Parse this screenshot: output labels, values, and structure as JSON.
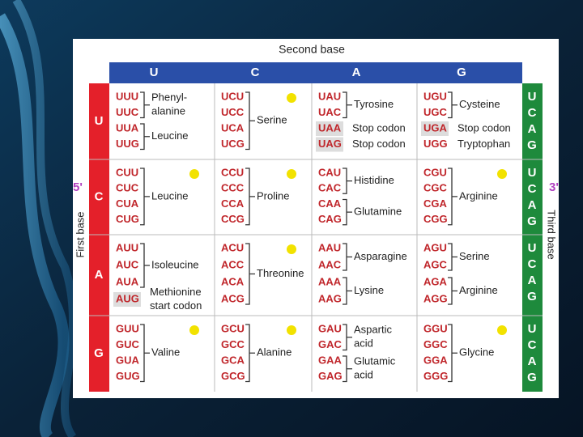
{
  "table": {
    "title": "Second base",
    "columns": [
      "U",
      "C",
      "A",
      "G"
    ],
    "first_base_label": "First base",
    "third_base_label": "Third base",
    "five_prime": "5'",
    "three_prime": "3'",
    "third_base": [
      "U",
      "C",
      "A",
      "G"
    ],
    "rows": [
      {
        "base": "U",
        "cells": [
          [
            {
              "codons": [
                "UUU",
                "UUC"
              ],
              "label": [
                "Phenyl-",
                "alanine"
              ]
            },
            {
              "codons": [
                "UUA",
                "UUG"
              ],
              "label": [
                "Leucine"
              ]
            }
          ],
          [
            {
              "codons": [
                "UCU",
                "UCC",
                "UCA",
                "UCG"
              ],
              "label": [
                "Serine"
              ]
            }
          ],
          [
            {
              "codons": [
                "UAU",
                "UAC"
              ],
              "label": [
                "Tyrosine"
              ]
            },
            {
              "codons": [
                "UAA"
              ],
              "label": [
                "Stop codon"
              ],
              "highlight": true
            },
            {
              "codons": [
                "UAG"
              ],
              "label": [
                "Stop codon"
              ],
              "highlight": true
            }
          ],
          [
            {
              "codons": [
                "UGU",
                "UGC"
              ],
              "label": [
                "Cysteine"
              ]
            },
            {
              "codons": [
                "UGA"
              ],
              "label": [
                "Stop codon"
              ],
              "highlight": true
            },
            {
              "codons": [
                "UGG"
              ],
              "label": [
                "Tryptophan"
              ]
            }
          ]
        ]
      },
      {
        "base": "C",
        "cells": [
          [
            {
              "codons": [
                "CUU",
                "CUC",
                "CUA",
                "CUG"
              ],
              "label": [
                "Leucine"
              ]
            }
          ],
          [
            {
              "codons": [
                "CCU",
                "CCC",
                "CCA",
                "CCG"
              ],
              "label": [
                "Proline"
              ]
            }
          ],
          [
            {
              "codons": [
                "CAU",
                "CAC"
              ],
              "label": [
                "Histidine"
              ]
            },
            {
              "codons": [
                "CAA",
                "CAG"
              ],
              "label": [
                "Glutamine"
              ]
            }
          ],
          [
            {
              "codons": [
                "CGU",
                "CGC",
                "CGA",
                "CGG"
              ],
              "label": [
                "Arginine"
              ]
            }
          ]
        ]
      },
      {
        "base": "A",
        "cells": [
          [
            {
              "codons": [
                "AUU",
                "AUC",
                "AUA"
              ],
              "label": [
                "Isoleucine"
              ]
            },
            {
              "codons": [
                "AUG"
              ],
              "label": [
                "Methionine",
                "start codon"
              ],
              "highlight": true
            }
          ],
          [
            {
              "codons": [
                "ACU",
                "ACC",
                "ACA",
                "ACG"
              ],
              "label": [
                "Threonine"
              ]
            }
          ],
          [
            {
              "codons": [
                "AAU",
                "AAC"
              ],
              "label": [
                "Asparagine"
              ]
            },
            {
              "codons": [
                "AAA",
                "AAG"
              ],
              "label": [
                "Lysine"
              ]
            }
          ],
          [
            {
              "codons": [
                "AGU",
                "AGC"
              ],
              "label": [
                "Serine"
              ]
            },
            {
              "codons": [
                "AGA",
                "AGG"
              ],
              "label": [
                "Arginine"
              ]
            }
          ]
        ]
      },
      {
        "base": "G",
        "cells": [
          [
            {
              "codons": [
                "GUU",
                "GUC",
                "GUA",
                "GUG"
              ],
              "label": [
                "Valine"
              ]
            }
          ],
          [
            {
              "codons": [
                "GCU",
                "GCC",
                "GCA",
                "GCG"
              ],
              "label": [
                "Alanine"
              ]
            }
          ],
          [
            {
              "codons": [
                "GAU",
                "GAC"
              ],
              "label": [
                "Aspartic",
                "acid"
              ]
            },
            {
              "codons": [
                "GAA",
                "GAG"
              ],
              "label": [
                "Glutamic",
                "acid"
              ]
            }
          ],
          [
            {
              "codons": [
                "GGU",
                "GGC",
                "GGA",
                "GGG"
              ],
              "label": [
                "Glycine"
              ]
            }
          ]
        ]
      }
    ]
  }
}
